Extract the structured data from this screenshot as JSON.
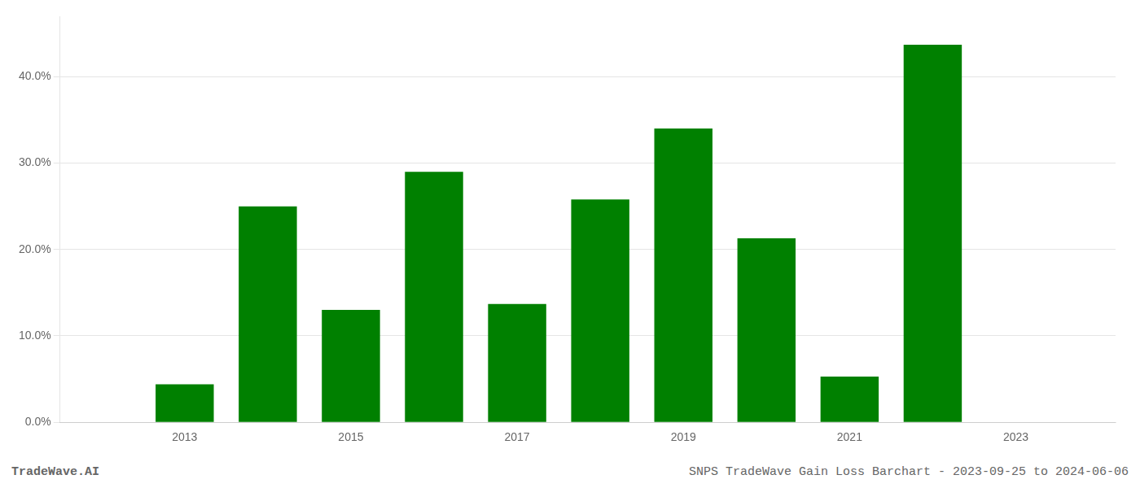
{
  "chart_data": {
    "type": "bar",
    "x": [
      2013,
      2014,
      2015,
      2016,
      2017,
      2018,
      2019,
      2020,
      2021,
      2022,
      2023
    ],
    "values": [
      0.044,
      0.25,
      0.13,
      0.29,
      0.137,
      0.258,
      0.34,
      0.213,
      0.053,
      0.437,
      0.0
    ],
    "color": "#008000",
    "xlim": [
      2011.5,
      2024.2
    ],
    "xticks": [
      2013,
      2015,
      2017,
      2019,
      2021,
      2023
    ],
    "ylim": [
      0.0,
      0.47
    ],
    "yticks": [
      {
        "value": 0.0,
        "label": "0.0%"
      },
      {
        "value": 0.1,
        "label": "10.0%"
      },
      {
        "value": 0.2,
        "label": "20.0%"
      },
      {
        "value": 0.3,
        "label": "30.0%"
      },
      {
        "value": 0.4,
        "label": "40.0%"
      }
    ],
    "grid": true,
    "annotations": [
      "TradeWave.AI",
      "SNPS TradeWave Gain Loss Barchart - 2023-09-25 to 2024-06-06"
    ]
  }
}
